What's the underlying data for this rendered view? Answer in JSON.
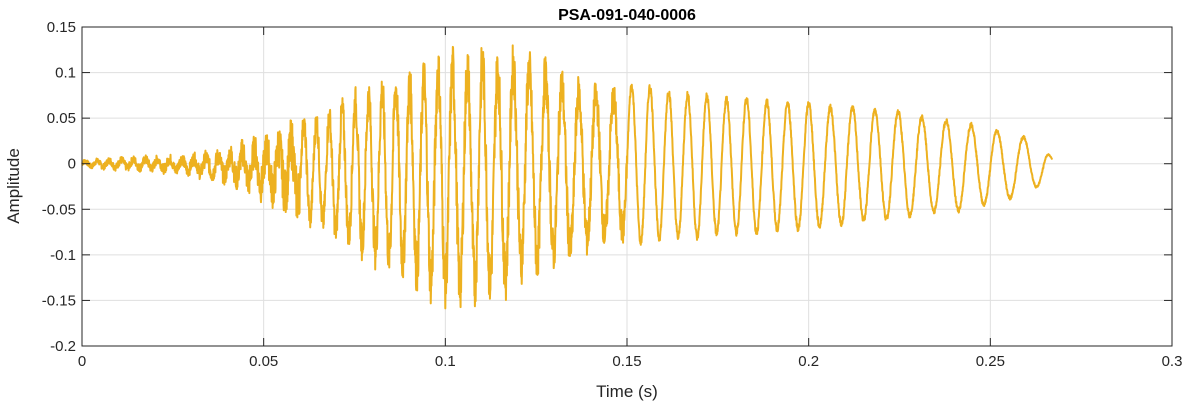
{
  "chart_data": {
    "type": "line",
    "title": "PSA-091-040-0006",
    "xlabel": "Time (s)",
    "ylabel": "Amplitude",
    "xlim": [
      0,
      0.3
    ],
    "ylim": [
      -0.2,
      0.15
    ],
    "grid": true,
    "x_ticks": [
      "0",
      "0.05",
      "0.1",
      "0.15",
      "0.2",
      "0.25",
      "0.3"
    ],
    "y_ticks": [
      "0.15",
      "0.1",
      "0.05",
      "0",
      "-0.05",
      "-0.1",
      "-0.15",
      "-0.2"
    ],
    "series": [
      {
        "color": "#EDB120",
        "x": [
          0,
          0.01,
          0.02,
          0.03,
          0.04,
          0.045,
          0.05,
          0.055,
          0.06,
          0.065,
          0.07,
          0.075,
          0.08,
          0.085,
          0.09,
          0.095,
          0.1,
          0.105,
          0.11,
          0.115,
          0.12,
          0.125,
          0.13,
          0.135,
          0.14,
          0.145,
          0.15,
          0.155,
          0.16,
          0.165,
          0.17,
          0.175,
          0.18,
          0.185,
          0.19,
          0.195,
          0.2,
          0.205,
          0.21,
          0.215,
          0.22,
          0.225,
          0.23,
          0.235,
          0.24,
          0.245,
          0.25,
          0.255,
          0.26,
          0.265,
          0.267
        ],
        "envelope_upper": [
          0.005,
          0.008,
          0.01,
          0.012,
          0.02,
          0.03,
          0.035,
          0.045,
          0.055,
          0.06,
          0.07,
          0.085,
          0.095,
          0.105,
          0.11,
          0.12,
          0.135,
          0.13,
          0.138,
          0.13,
          0.135,
          0.125,
          0.115,
          0.1,
          0.095,
          0.09,
          0.09,
          0.09,
          0.085,
          0.08,
          0.08,
          0.075,
          0.075,
          0.075,
          0.07,
          0.07,
          0.07,
          0.065,
          0.065,
          0.065,
          0.06,
          0.06,
          0.055,
          0.05,
          0.05,
          0.045,
          0.04,
          0.035,
          0.03,
          0.02,
          0.005
        ],
        "envelope_lower": [
          -0.005,
          -0.008,
          -0.01,
          -0.015,
          -0.025,
          -0.035,
          -0.045,
          -0.055,
          -0.07,
          -0.075,
          -0.09,
          -0.1,
          -0.115,
          -0.125,
          -0.135,
          -0.155,
          -0.16,
          -0.165,
          -0.155,
          -0.16,
          -0.135,
          -0.13,
          -0.12,
          -0.115,
          -0.1,
          -0.095,
          -0.09,
          -0.09,
          -0.085,
          -0.085,
          -0.085,
          -0.08,
          -0.08,
          -0.08,
          -0.075,
          -0.075,
          -0.075,
          -0.07,
          -0.07,
          -0.065,
          -0.065,
          -0.06,
          -0.06,
          -0.055,
          -0.055,
          -0.05,
          -0.045,
          -0.04,
          -0.035,
          -0.02,
          -0.005
        ]
      }
    ]
  }
}
